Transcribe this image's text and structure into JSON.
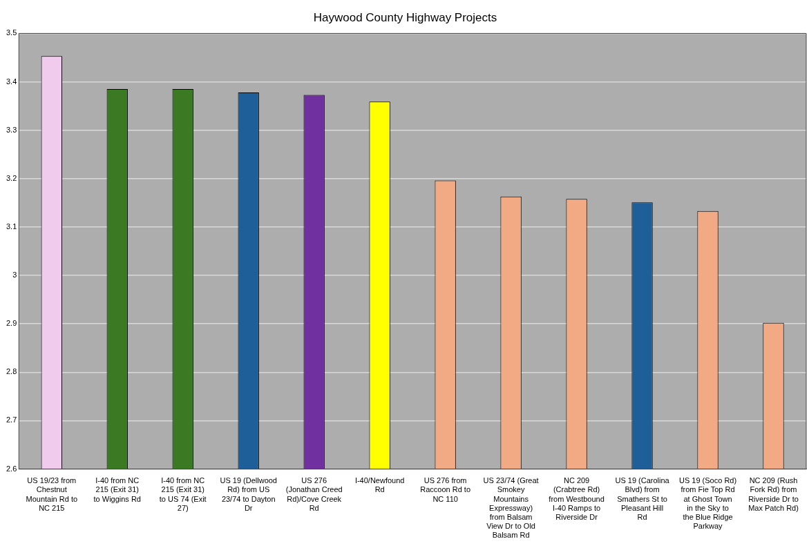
{
  "chart_data": {
    "type": "bar",
    "title": "Haywood County Highway Projects",
    "categories": [
      "US 19/23 from Chestnut Mountain Rd to NC 215",
      "I-40 from NC 215 (Exit 31) to Wiggins Rd",
      "I-40 from NC 215 (Exit 31) to US 74 (Exit 27)",
      "US 19 (Dellwood Rd) from US 23/74 to Dayton Dr",
      "US 276 (Jonathan Creed Rd)/Cove Creek Rd",
      "I-40/Newfound Rd",
      "US 276 from Raccoon Rd to NC 110",
      "US 23/74 (Great Smokey Mountains Expressway) from Balsam View Dr to Old Balsam Rd",
      "NC 209 (Crabtree Rd) from Westbound I-40 Ramps to Riverside Dr",
      "US 19 (Carolina Blvd) from Smathers St to Pleasant Hill Rd",
      "US 19 (Soco Rd) from Fie Top Rd at Ghost Town in the Sky to the Blue Ridge Parkway",
      "NC 209 (Rush Fork Rd) from Riverside Dr to Max Patch Rd)"
    ],
    "values": [
      3.453,
      3.385,
      3.385,
      3.378,
      3.373,
      3.359,
      3.196,
      3.163,
      3.158,
      3.151,
      3.133,
      2.902
    ],
    "colors": [
      "#f0cbee",
      "#3b7a22",
      "#3b7a22",
      "#1f5f99",
      "#7030a0",
      "#ffff00",
      "#f2aa84",
      "#f2aa84",
      "#f2aa84",
      "#1f5f99",
      "#f2aa84",
      "#f2aa84"
    ],
    "ylim": [
      2.6,
      3.5
    ],
    "yticks": [
      2.6,
      2.7,
      2.8,
      2.9,
      3,
      3.1,
      3.2,
      3.3,
      3.4,
      3.5
    ],
    "grid": "y",
    "legend": false
  }
}
